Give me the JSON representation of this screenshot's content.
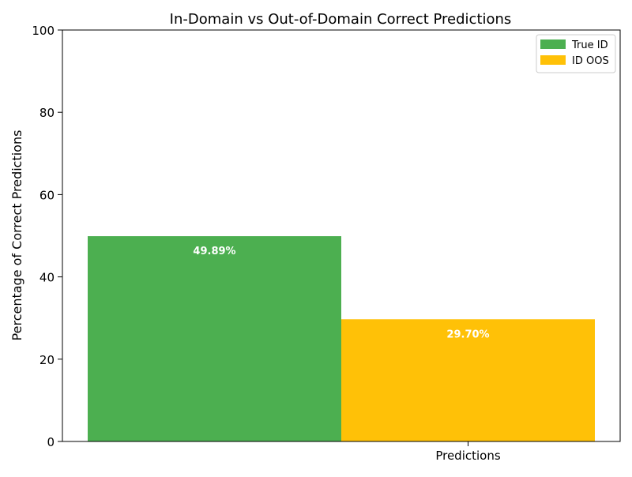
{
  "chart_data": {
    "type": "bar",
    "title": "In-Domain vs Out-of-Domain Correct Predictions",
    "xlabel": "",
    "ylabel": "Percentage of Correct Predictions",
    "categories": [
      "Predictions"
    ],
    "ylim": [
      0,
      100
    ],
    "yticks": [
      "0",
      "20",
      "40",
      "60",
      "80",
      "100"
    ],
    "series": [
      {
        "name": "True ID",
        "values": [
          49.89
        ],
        "label": "49.89%",
        "color": "#4caf50"
      },
      {
        "name": "ID OOS",
        "values": [
          29.7
        ],
        "label": "29.70%",
        "color": "#ffc107"
      }
    ],
    "legend": "top-right",
    "grid": false
  }
}
